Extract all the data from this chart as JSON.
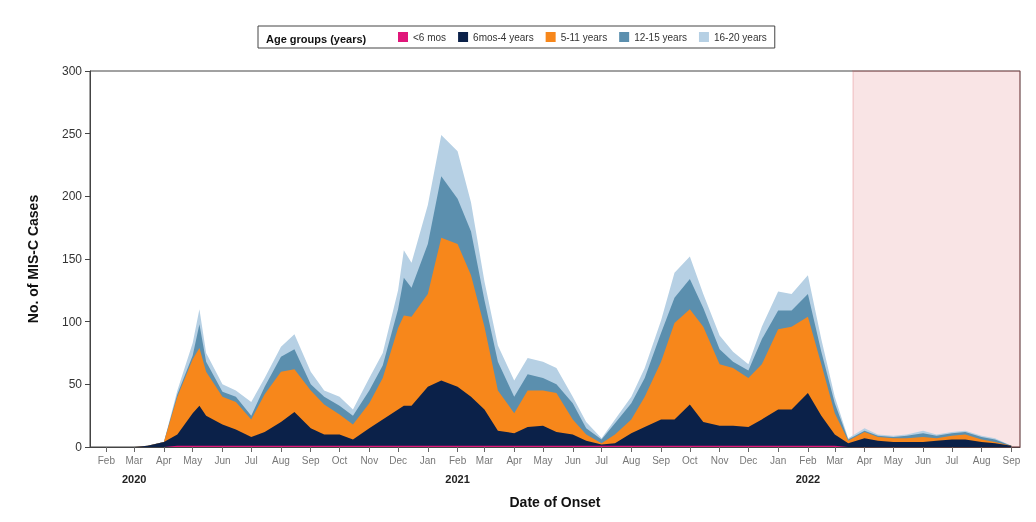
{
  "chart_data": {
    "type": "area",
    "stacked": true,
    "xlabel": "Date of Onset",
    "ylabel": "No. of MIS-C Cases",
    "legend_title": "Age groups (years)",
    "legend": "top",
    "grid": false,
    "x": [
      "2020-02-01",
      "2020-02-15",
      "2020-03-01",
      "2020-03-15",
      "2020-04-01",
      "2020-04-15",
      "2020-05-01",
      "2020-05-08",
      "2020-05-15",
      "2020-06-01",
      "2020-06-15",
      "2020-07-01",
      "2020-07-15",
      "2020-08-01",
      "2020-08-15",
      "2020-09-01",
      "2020-09-15",
      "2020-10-01",
      "2020-10-15",
      "2020-11-01",
      "2020-11-15",
      "2020-12-01",
      "2020-12-07",
      "2020-12-15",
      "2021-01-01",
      "2021-01-15",
      "2021-02-01",
      "2021-02-15",
      "2021-03-01",
      "2021-03-15",
      "2021-04-01",
      "2021-04-15",
      "2021-05-01",
      "2021-05-15",
      "2021-06-01",
      "2021-06-15",
      "2021-07-01",
      "2021-07-15",
      "2021-08-01",
      "2021-08-15",
      "2021-09-01",
      "2021-09-15",
      "2021-10-01",
      "2021-10-15",
      "2021-11-01",
      "2021-11-15",
      "2021-12-01",
      "2021-12-15",
      "2022-01-01",
      "2022-01-15",
      "2022-02-01",
      "2022-02-15",
      "2022-03-01",
      "2022-03-15",
      "2022-04-01",
      "2022-04-15",
      "2022-05-01",
      "2022-05-15",
      "2022-06-01",
      "2022-06-15",
      "2022-07-01",
      "2022-07-15",
      "2022-08-01",
      "2022-08-15",
      "2022-09-01"
    ],
    "series": [
      {
        "name": "<6 mos",
        "color": "#e0177a",
        "values": [
          0,
          0,
          0,
          0,
          0,
          1,
          1,
          1,
          1,
          1,
          1,
          1,
          1,
          1,
          1,
          1,
          1,
          1,
          1,
          1,
          1,
          1,
          1,
          1,
          1,
          1,
          1,
          1,
          1,
          1,
          1,
          1,
          1,
          1,
          1,
          1,
          1,
          1,
          1,
          1,
          1,
          1,
          1,
          1,
          1,
          1,
          1,
          1,
          1,
          1,
          1,
          1,
          1,
          0,
          0,
          0,
          0,
          0,
          0,
          0,
          0,
          0,
          0,
          0,
          0
        ]
      },
      {
        "name": "6mos-4 years",
        "color": "#0b2149",
        "values": [
          0,
          0,
          0,
          1,
          4,
          9,
          26,
          32,
          24,
          17,
          13,
          7,
          11,
          19,
          27,
          14,
          9,
          9,
          5,
          14,
          21,
          29,
          32,
          32,
          47,
          52,
          47,
          39,
          29,
          12,
          10,
          15,
          16,
          11,
          9,
          4,
          1,
          2,
          10,
          15,
          21,
          21,
          33,
          19,
          16,
          16,
          15,
          21,
          29,
          29,
          42,
          24,
          9,
          3,
          7,
          5,
          4,
          4,
          4,
          5,
          6,
          6,
          4,
          3,
          1
        ]
      },
      {
        "name": "5-11 years",
        "color": "#f7871b",
        "values": [
          0,
          0,
          0,
          0,
          0,
          30,
          43,
          46,
          35,
          22,
          22,
          14,
          30,
          40,
          34,
          30,
          24,
          16,
          12,
          20,
          33,
          65,
          72,
          71,
          74,
          114,
          114,
          97,
          66,
          32,
          16,
          29,
          28,
          31,
          12,
          5,
          1,
          7,
          11,
          24,
          46,
          77,
          76,
          76,
          49,
          46,
          39,
          44,
          64,
          66,
          61,
          41,
          17,
          2,
          5,
          3,
          3,
          3,
          4,
          2,
          3,
          4,
          2,
          1,
          0
        ]
      },
      {
        "name": "12-15 years",
        "color": "#5b8fae",
        "values": [
          0,
          0,
          0,
          0,
          0,
          2,
          3,
          19,
          8,
          4,
          4,
          3,
          6,
          12,
          16,
          5,
          6,
          7,
          7,
          10,
          10,
          15,
          30,
          23,
          40,
          49,
          36,
          35,
          21,
          23,
          13,
          13,
          10,
          7,
          13,
          5,
          3,
          9,
          13,
          15,
          23,
          20,
          24,
          15,
          12,
          5,
          6,
          20,
          15,
          13,
          18,
          10,
          8,
          1,
          1,
          1,
          1,
          2,
          3,
          2,
          2,
          2,
          2,
          2,
          0
        ]
      },
      {
        "name": "16-20 years",
        "color": "#b6d0e4",
        "values": [
          0,
          0,
          0,
          0,
          0,
          3,
          10,
          12,
          7,
          6,
          5,
          11,
          7,
          8,
          12,
          10,
          5,
          7,
          5,
          10,
          10,
          15,
          22,
          20,
          31,
          33,
          38,
          23,
          15,
          13,
          13,
          13,
          13,
          13,
          5,
          5,
          1,
          3,
          5,
          8,
          10,
          20,
          18,
          11,
          11,
          8,
          5,
          10,
          15,
          13,
          15,
          10,
          5,
          1,
          2,
          1,
          1,
          1,
          2,
          1,
          1,
          1,
          1,
          1,
          0
        ]
      }
    ],
    "xlim": [
      "2020-01-15",
      "2022-09-10"
    ],
    "xticks": [
      {
        "value": "2020-02-01",
        "label": "Feb"
      },
      {
        "value": "2020-03-01",
        "label": "Mar\n2020"
      },
      {
        "value": "2020-04-01",
        "label": "Apr"
      },
      {
        "value": "2020-05-01",
        "label": "May"
      },
      {
        "value": "2020-06-01",
        "label": "Jun"
      },
      {
        "value": "2020-07-01",
        "label": "Jul"
      },
      {
        "value": "2020-08-01",
        "label": "Aug"
      },
      {
        "value": "2020-09-01",
        "label": "Sep"
      },
      {
        "value": "2020-10-01",
        "label": "Oct"
      },
      {
        "value": "2020-11-01",
        "label": "Nov"
      },
      {
        "value": "2020-12-01",
        "label": "Dec"
      },
      {
        "value": "2021-01-01",
        "label": "Jan"
      },
      {
        "value": "2021-02-01",
        "label": "Feb\n2021"
      },
      {
        "value": "2021-03-01",
        "label": "Mar"
      },
      {
        "value": "2021-04-01",
        "label": "Apr"
      },
      {
        "value": "2021-05-01",
        "label": "May"
      },
      {
        "value": "2021-06-01",
        "label": "Jun"
      },
      {
        "value": "2021-07-01",
        "label": "Jul"
      },
      {
        "value": "2021-08-01",
        "label": "Aug"
      },
      {
        "value": "2021-09-01",
        "label": "Sep"
      },
      {
        "value": "2021-10-01",
        "label": "Oct"
      },
      {
        "value": "2021-11-01",
        "label": "Nov"
      },
      {
        "value": "2021-12-01",
        "label": "Dec"
      },
      {
        "value": "2022-01-01",
        "label": "Jan"
      },
      {
        "value": "2022-02-01",
        "label": "Feb\n2022"
      },
      {
        "value": "2022-03-01",
        "label": "Mar"
      },
      {
        "value": "2022-04-01",
        "label": "Apr"
      },
      {
        "value": "2022-05-01",
        "label": "May"
      },
      {
        "value": "2022-06-01",
        "label": "Jun"
      },
      {
        "value": "2022-07-01",
        "label": "Jul"
      },
      {
        "value": "2022-08-01",
        "label": "Aug"
      },
      {
        "value": "2022-09-01",
        "label": "Sep"
      }
    ],
    "ylim": [
      0,
      300
    ],
    "yticks": [
      0,
      50,
      100,
      150,
      200,
      250,
      300
    ],
    "bands": [
      {
        "axis": "x",
        "from": "2022-03-20",
        "to": "2022-09-10",
        "color": "#d0202a"
      }
    ]
  }
}
